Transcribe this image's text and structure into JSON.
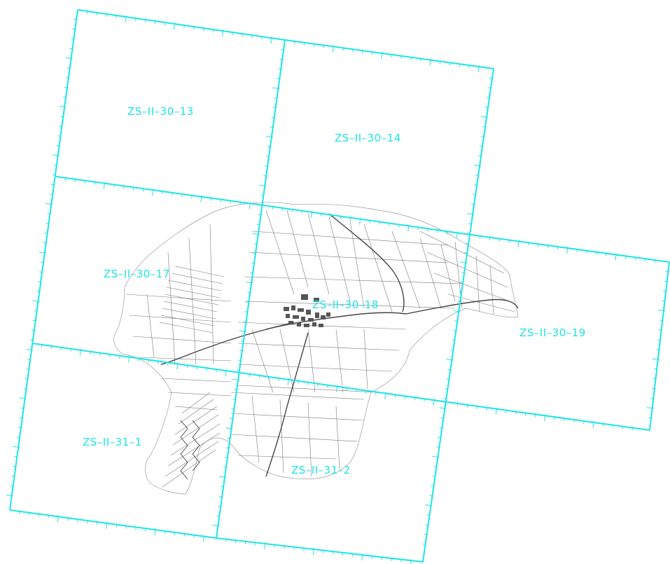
{
  "colors": {
    "grid": "#1ee4e4",
    "label": "#1ee4e4",
    "map_lines": "#7a7a7a",
    "background": "#ffffff"
  },
  "sheets": [
    {
      "id": "s13",
      "label": "ZS–II–30–13"
    },
    {
      "id": "s14",
      "label": "ZS–II–30–14"
    },
    {
      "id": "s17",
      "label": "ZS–II–30–17"
    },
    {
      "id": "s18",
      "label": "ZS–II–30–18"
    },
    {
      "id": "s19",
      "label": "ZS–II–30–19"
    },
    {
      "id": "s31_1",
      "label": "ZS–II–31–1"
    },
    {
      "id": "s31_2",
      "label": "ZS–II–31–2"
    }
  ]
}
